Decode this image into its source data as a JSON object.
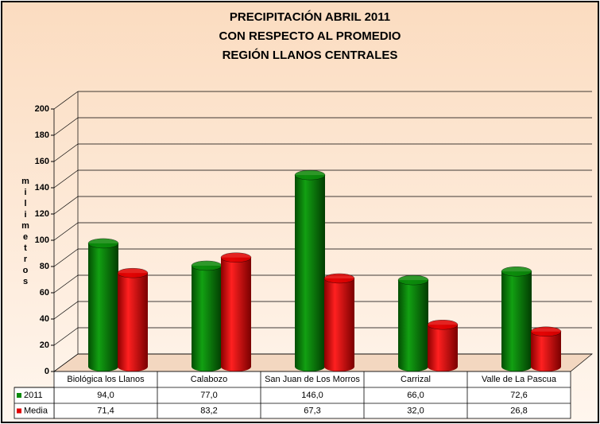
{
  "chart_data": {
    "type": "bar",
    "title": [
      "PRECIPITACIÓN ABRIL 2011",
      "CON RESPECTO AL PROMEDIO",
      "REGIÓN LLANOS CENTRALES"
    ],
    "y_label": "milimetros",
    "categories": [
      "Biológica los Llanos",
      "Calabozo",
      "San Juan de Los Morros",
      "Carrizal",
      "Valle de La Pascua"
    ],
    "series": [
      {
        "name": "2011",
        "color": "#0b8a0b",
        "values": [
          94.0,
          77.0,
          146.0,
          66.0,
          72.6
        ],
        "value_labels": [
          "94,0",
          "77,0",
          "146,0",
          "66,0",
          "72,6"
        ]
      },
      {
        "name": "Media",
        "color": "#e00000",
        "values": [
          71.4,
          83.2,
          67.3,
          32.0,
          26.8
        ],
        "value_labels": [
          "71,4",
          "83,2",
          "67,3",
          "32,0",
          "26,8"
        ]
      }
    ],
    "ylim": [
      0,
      200
    ],
    "yticks": [
      0,
      20,
      40,
      60,
      80,
      100,
      120,
      140,
      160,
      180,
      200
    ],
    "grid": true
  }
}
